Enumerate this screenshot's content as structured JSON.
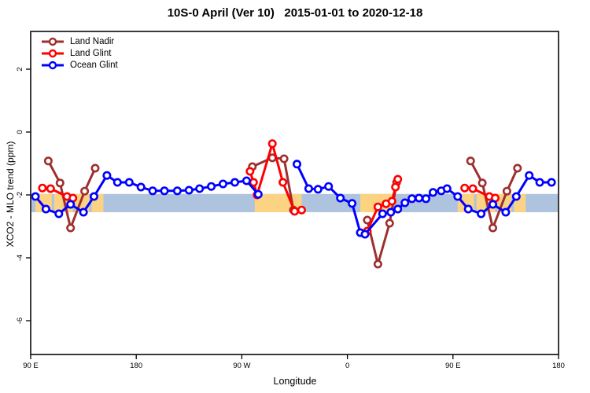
{
  "title": "10S-0 April (Ver 10)   2015-01-01 to 2020-12-18",
  "legend": {
    "items": [
      {
        "label": "Land Nadir",
        "color": "#9E2F2F"
      },
      {
        "label": "Land Glint",
        "color": "#FF0000"
      },
      {
        "label": "Ocean Glint",
        "color": "#0000FF"
      }
    ]
  },
  "chart_data": {
    "type": "line",
    "title": "10S-0 April (Ver 10)  2015-01-01 to 2020-12-18",
    "xlabel": "Longitude",
    "ylabel": "XCO2 - MLO trend (ppm)",
    "x_range_deg": [
      90,
      540
    ],
    "y_range": [
      -7.075,
      3.2
    ],
    "x_ticks": [
      {
        "lon": 90,
        "label": "90 E"
      },
      {
        "lon": 180,
        "label": "180"
      },
      {
        "lon": 270,
        "label": "90 W"
      },
      {
        "lon": 360,
        "label": "0"
      },
      {
        "lon": 450,
        "label": "90 E"
      },
      {
        "lon": 540,
        "label": "180"
      }
    ],
    "y_ticks": [
      {
        "value": 2,
        "label": "2"
      },
      {
        "value": 0,
        "label": "0"
      },
      {
        "value": -2,
        "label": "-2"
      },
      {
        "value": -4,
        "label": "-4"
      },
      {
        "value": -6,
        "label": "-6"
      }
    ],
    "map_band": {
      "y_top": -1.97,
      "y_bottom": -2.55,
      "ocean_color": "#AEC3DE",
      "land_color": "#FBD382",
      "land_segments_deg": [
        [
          94,
          108
        ],
        [
          110,
          118
        ],
        [
          119,
          126
        ],
        [
          128,
          140
        ],
        [
          142,
          152
        ],
        [
          281,
          321
        ],
        [
          371,
          398
        ],
        [
          454,
          468
        ],
        [
          470,
          478
        ],
        [
          479,
          486
        ],
        [
          488,
          500
        ],
        [
          502,
          512
        ]
      ]
    },
    "series": [
      {
        "name": "Land Nadir",
        "color": "#9E2F2F",
        "segments": [
          [
            [
              105,
              -0.92
            ],
            [
              115,
              -1.62
            ],
            [
              124,
              -3.05
            ],
            [
              136,
              -1.88
            ],
            [
              145,
              -1.15
            ]
          ],
          [
            [
              279,
              -1.1
            ],
            [
              296,
              -0.82
            ],
            [
              306,
              -0.85
            ],
            [
              314,
              -2.48
            ]
          ],
          [
            [
              377,
              -2.8
            ],
            [
              386,
              -4.2
            ],
            [
              396,
              -2.9
            ],
            [
              402,
              -1.6
            ]
          ],
          [
            [
              465,
              -0.92
            ],
            [
              475,
              -1.62
            ],
            [
              484,
              -3.05
            ],
            [
              496,
              -1.88
            ],
            [
              505,
              -1.15
            ]
          ]
        ]
      },
      {
        "name": "Land Glint",
        "color": "#FF0000",
        "segments": [
          [
            [
              100,
              -1.78
            ],
            [
              107,
              -1.8
            ],
            [
              121,
              -2.05
            ],
            [
              126,
              -2.1
            ]
          ],
          [
            [
              277,
              -1.25
            ],
            [
              280,
              -1.6
            ],
            [
              283,
              -2.0
            ],
            [
              296,
              -0.37
            ],
            [
              305,
              -1.6
            ],
            [
              315,
              -2.52
            ],
            [
              321,
              -2.48
            ]
          ],
          [
            [
              377,
              -3.15
            ],
            [
              386,
              -2.38
            ],
            [
              393,
              -2.28
            ],
            [
              398,
              -2.2
            ],
            [
              401,
              -1.75
            ],
            [
              403,
              -1.5
            ]
          ],
          [
            [
              460,
              -1.78
            ],
            [
              467,
              -1.8
            ],
            [
              481,
              -2.05
            ],
            [
              486,
              -2.1
            ]
          ]
        ]
      },
      {
        "name": "Ocean Glint",
        "color": "#0000FF",
        "segments": [
          [
            [
              94,
              -2.05
            ],
            [
              103,
              -2.45
            ],
            [
              114,
              -2.6
            ],
            [
              124,
              -2.3
            ],
            [
              135,
              -2.55
            ],
            [
              144,
              -2.05
            ],
            [
              155,
              -1.38
            ],
            [
              164,
              -1.6
            ],
            [
              174,
              -1.6
            ],
            [
              184,
              -1.75
            ],
            [
              194,
              -1.87
            ],
            [
              204,
              -1.87
            ],
            [
              215,
              -1.87
            ],
            [
              225,
              -1.85
            ],
            [
              234,
              -1.8
            ],
            [
              244,
              -1.73
            ],
            [
              254,
              -1.65
            ],
            [
              264,
              -1.6
            ],
            [
              274,
              -1.55
            ],
            [
              284,
              -1.98
            ]
          ],
          [
            [
              317,
              -1.02
            ],
            [
              327,
              -1.8
            ],
            [
              335,
              -1.82
            ],
            [
              344,
              -1.73
            ],
            [
              354,
              -2.1
            ],
            [
              364,
              -2.27
            ],
            [
              371,
              -3.2
            ],
            [
              375,
              -3.25
            ],
            [
              390,
              -2.6
            ],
            [
              397,
              -2.55
            ],
            [
              403,
              -2.45
            ],
            [
              409,
              -2.25
            ],
            [
              415,
              -2.12
            ],
            [
              421,
              -2.1
            ],
            [
              427,
              -2.12
            ],
            [
              433,
              -1.92
            ],
            [
              440,
              -1.87
            ],
            [
              445,
              -1.8
            ],
            [
              454,
              -2.05
            ],
            [
              463,
              -2.45
            ],
            [
              474,
              -2.6
            ],
            [
              484,
              -2.3
            ],
            [
              495,
              -2.55
            ],
            [
              504,
              -2.05
            ],
            [
              515,
              -1.38
            ],
            [
              524,
              -1.6
            ],
            [
              534,
              -1.6
            ]
          ]
        ]
      }
    ]
  }
}
